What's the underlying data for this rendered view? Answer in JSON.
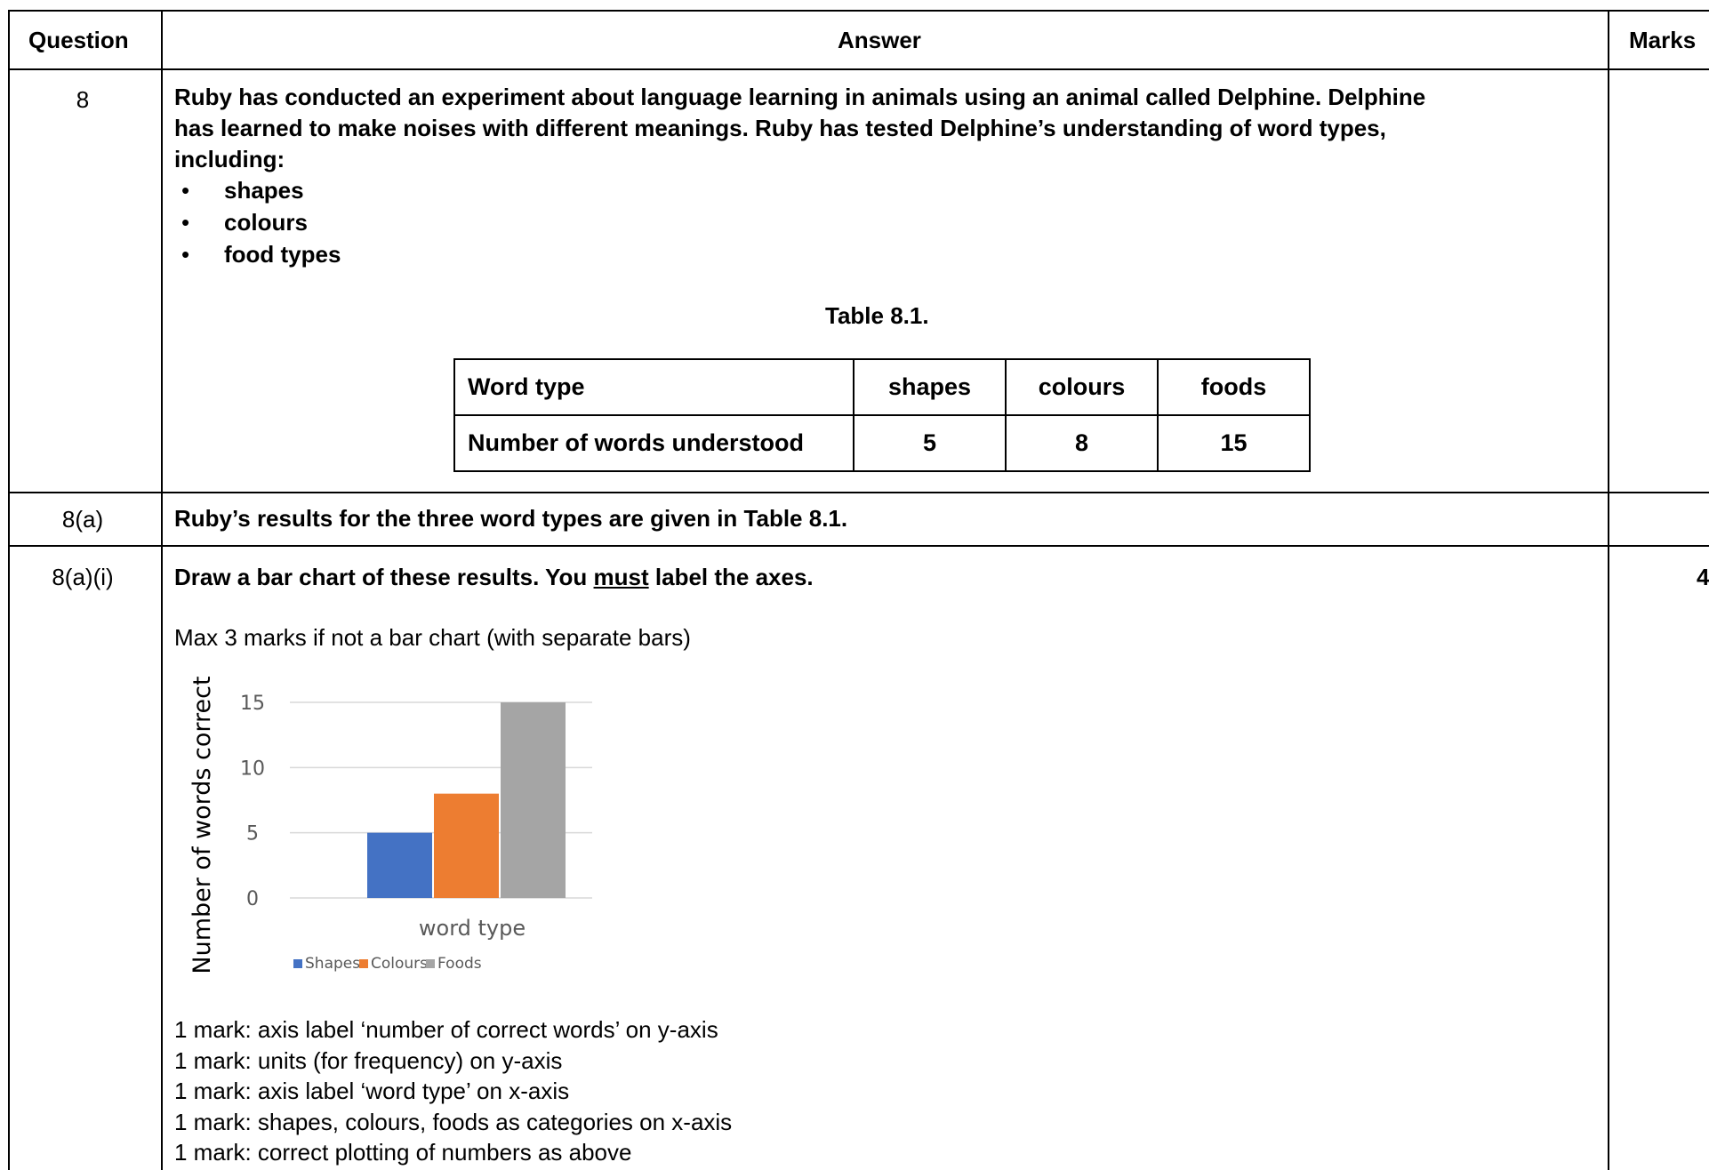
{
  "header": {
    "question": "Question",
    "answer": "Answer",
    "marks": "Marks"
  },
  "row8": {
    "number": "8",
    "intro_lines": [
      "Ruby has conducted an experiment about language learning in animals using an animal called Delphine. Delphine",
      "has learned to make noises with different meanings. Ruby has tested Delphine’s understanding of word types,",
      "including:"
    ],
    "bullets": [
      "shapes",
      "colours",
      "food types"
    ],
    "table_caption": "Table 8.1.",
    "table": {
      "header_label": "Word type",
      "columns": [
        "shapes",
        "colours",
        "foods"
      ],
      "row_label": "Number of words understood",
      "values": [
        "5",
        "8",
        "15"
      ]
    }
  },
  "row8a": {
    "number": "8(a)",
    "text": "Ruby’s results for the three word types are given in Table 8.1."
  },
  "row8ai": {
    "number": "8(a)(i)",
    "q_before": "Draw a bar chart of these results. You ",
    "q_must": "must",
    "q_after": " label the axes.",
    "marks": "4",
    "note": "Max 3 marks if not a bar chart (with separate bars)",
    "mark_lines": [
      "1 mark: axis label ‘number of correct words’ on y-axis",
      "1 mark: units (for frequency) on y-axis",
      "1 mark: axis label ‘word type’ on x-axis",
      "1 mark: shapes, colours, foods as categories on x-axis",
      "1 mark: correct plotting of numbers as above"
    ]
  },
  "chart_data": {
    "type": "bar",
    "categories": [
      "Shapes",
      "Colours",
      "Foods"
    ],
    "values": [
      5,
      8,
      15
    ],
    "colors": [
      "#4472c4",
      "#ed7d31",
      "#a5a5a5"
    ],
    "ylabel": "Number of words correct",
    "xlabel": "word type",
    "ylim": [
      0,
      15
    ],
    "yticks": [
      "0",
      "5",
      "10",
      "15"
    ],
    "grid": true,
    "legend_position": "bottom",
    "legend": [
      "Shapes",
      "Colours",
      "Foods"
    ]
  }
}
